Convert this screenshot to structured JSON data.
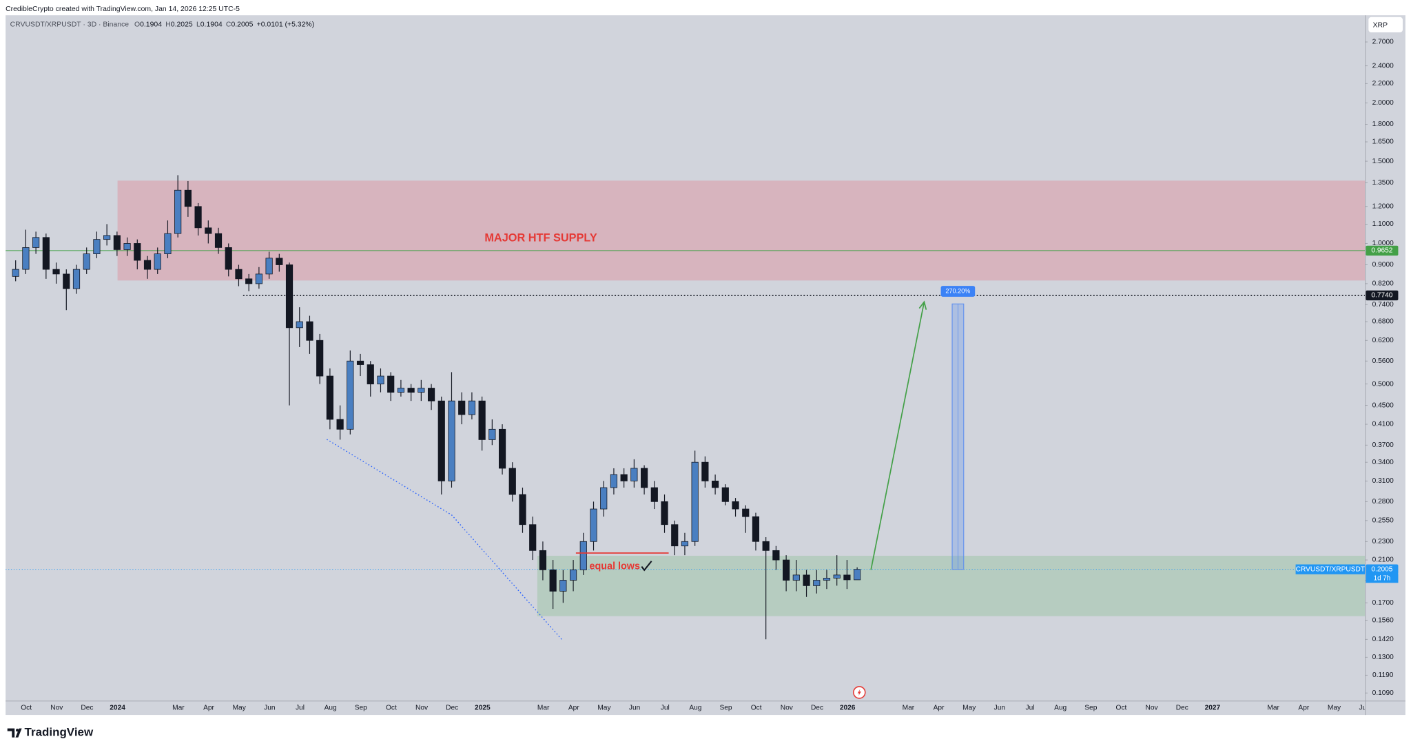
{
  "header": {
    "attribution": "CredibleCrypto created with TradingView.com, Jan 14, 2026 12:25 UTC-5"
  },
  "footer": {
    "logo_text": "TradingView"
  },
  "chart_data": {
    "type": "candlestick",
    "title": "CRVUSDT/XRPUSDT · 3D · Binance",
    "ohlc_legend": [
      {
        "key": "O",
        "value": 0.1904
      },
      {
        "key": "H",
        "value": 0.2025
      },
      {
        "key": "L",
        "value": 0.1904
      },
      {
        "key": "C",
        "value": 0.2005
      }
    ],
    "change_label": "+0.0101 (+5.32%)",
    "currency_button": "XRP",
    "series": [
      {
        "name": "CRVUSDT/XRPUSDT",
        "up_color": "#4a7fc1",
        "down_color": "#131722",
        "open": [
          0.85,
          0.88,
          0.98,
          1.03,
          0.88,
          0.86,
          0.8,
          0.88,
          0.95,
          1.02,
          1.04,
          0.97,
          1.0,
          0.92,
          0.88,
          0.95,
          1.05,
          1.3,
          1.2,
          1.08,
          1.05,
          0.98,
          0.88,
          0.84,
          0.82,
          0.86,
          0.93,
          0.9,
          0.66,
          0.68,
          0.62,
          0.52,
          0.42,
          0.4,
          0.56,
          0.55,
          0.5,
          0.52,
          0.48,
          0.49,
          0.48,
          0.49,
          0.46,
          0.31,
          0.46,
          0.43,
          0.46,
          0.38,
          0.4,
          0.33,
          0.29,
          0.25,
          0.22,
          0.2,
          0.18,
          0.19,
          0.2,
          0.23,
          0.27,
          0.3,
          0.32,
          0.31,
          0.33,
          0.3,
          0.28,
          0.25,
          0.225,
          0.23,
          0.34,
          0.31,
          0.3,
          0.28,
          0.27,
          0.26,
          0.23,
          0.22,
          0.21,
          0.19,
          0.195,
          0.185,
          0.19,
          0.192,
          0.195,
          0.1904
        ],
        "high": [
          0.92,
          1.07,
          1.06,
          1.05,
          0.91,
          0.88,
          0.9,
          0.98,
          1.06,
          1.1,
          1.06,
          1.03,
          1.02,
          0.94,
          0.98,
          1.12,
          1.4,
          1.36,
          1.22,
          1.12,
          1.08,
          1.0,
          0.9,
          0.86,
          0.89,
          0.96,
          0.95,
          0.91,
          0.73,
          0.7,
          0.64,
          0.54,
          0.45,
          0.59,
          0.58,
          0.56,
          0.54,
          0.53,
          0.51,
          0.5,
          0.51,
          0.5,
          0.47,
          0.53,
          0.48,
          0.48,
          0.47,
          0.42,
          0.41,
          0.34,
          0.3,
          0.26,
          0.23,
          0.21,
          0.2,
          0.21,
          0.24,
          0.28,
          0.31,
          0.33,
          0.33,
          0.345,
          0.335,
          0.31,
          0.29,
          0.255,
          0.24,
          0.36,
          0.35,
          0.32,
          0.305,
          0.285,
          0.275,
          0.265,
          0.235,
          0.225,
          0.215,
          0.21,
          0.2,
          0.2,
          0.2,
          0.215,
          0.21,
          0.2025
        ],
        "low": [
          0.83,
          0.86,
          0.95,
          0.84,
          0.82,
          0.72,
          0.78,
          0.86,
          0.93,
          0.99,
          0.94,
          0.94,
          0.88,
          0.84,
          0.86,
          0.93,
          1.03,
          1.14,
          1.04,
          1.0,
          0.95,
          0.85,
          0.81,
          0.79,
          0.8,
          0.84,
          0.87,
          0.45,
          0.6,
          0.58,
          0.5,
          0.4,
          0.38,
          0.39,
          0.52,
          0.47,
          0.48,
          0.46,
          0.47,
          0.46,
          0.46,
          0.44,
          0.29,
          0.3,
          0.41,
          0.42,
          0.36,
          0.37,
          0.32,
          0.28,
          0.24,
          0.21,
          0.19,
          0.165,
          0.17,
          0.18,
          0.195,
          0.22,
          0.26,
          0.29,
          0.3,
          0.3,
          0.29,
          0.27,
          0.24,
          0.215,
          0.215,
          0.225,
          0.3,
          0.29,
          0.275,
          0.26,
          0.24,
          0.22,
          0.142,
          0.2,
          0.18,
          0.18,
          0.175,
          0.178,
          0.182,
          0.185,
          0.182,
          0.1904
        ],
        "close": [
          0.88,
          0.98,
          1.03,
          0.88,
          0.86,
          0.8,
          0.88,
          0.95,
          1.02,
          1.04,
          0.97,
          1.0,
          0.92,
          0.88,
          0.95,
          1.05,
          1.3,
          1.2,
          1.08,
          1.05,
          0.98,
          0.88,
          0.84,
          0.82,
          0.86,
          0.93,
          0.9,
          0.66,
          0.68,
          0.62,
          0.52,
          0.42,
          0.4,
          0.56,
          0.55,
          0.5,
          0.52,
          0.48,
          0.49,
          0.48,
          0.49,
          0.46,
          0.31,
          0.46,
          0.43,
          0.46,
          0.38,
          0.4,
          0.33,
          0.29,
          0.25,
          0.22,
          0.2,
          0.18,
          0.19,
          0.2,
          0.23,
          0.27,
          0.3,
          0.32,
          0.31,
          0.33,
          0.3,
          0.28,
          0.25,
          0.225,
          0.23,
          0.34,
          0.31,
          0.3,
          0.28,
          0.27,
          0.26,
          0.23,
          0.22,
          0.21,
          0.19,
          0.195,
          0.185,
          0.19,
          0.192,
          0.195,
          0.1904,
          0.2005
        ]
      }
    ],
    "x_labels": [
      "Oct",
      "Nov",
      "Dec",
      "2024",
      null,
      "Mar",
      "Apr",
      "May",
      "Jun",
      "Jul",
      "Aug",
      "Sep",
      "Oct",
      "Nov",
      "Dec",
      "2025",
      null,
      "Mar",
      "Apr",
      "May",
      "Jun",
      "Jul",
      "Aug",
      "Sep",
      "Oct",
      "Nov",
      "Dec",
      "2026",
      null,
      "Mar",
      "Apr",
      "May",
      "Jun",
      "Jul",
      "Aug",
      "Sep",
      "Oct",
      "Nov",
      "Dec",
      "2027",
      null,
      "Mar",
      "Apr",
      "May",
      "Jun"
    ],
    "log_scale": true,
    "grid": false,
    "ylim": [
      0.105,
      3.08
    ],
    "yticks": [
      {
        "value": 2.7,
        "label": "2.7000"
      },
      {
        "value": 2.4,
        "label": "2.4000"
      },
      {
        "value": 2.2,
        "label": "2.2000"
      },
      {
        "value": 2.0,
        "label": "2.0000"
      },
      {
        "value": 1.8,
        "label": "1.8000"
      },
      {
        "value": 1.65,
        "label": "1.6500"
      },
      {
        "value": 1.5,
        "label": "1.5000"
      },
      {
        "value": 1.35,
        "label": "1.3500"
      },
      {
        "value": 1.2,
        "label": "1.2000"
      },
      {
        "value": 1.1,
        "label": "1.1000"
      },
      {
        "value": 1.0,
        "label": "1.0000"
      },
      {
        "value": 0.9,
        "label": "0.9000"
      },
      {
        "value": 0.82,
        "label": "0.8200"
      },
      {
        "value": 0.74,
        "label": "0.7400"
      },
      {
        "value": 0.68,
        "label": "0.6800"
      },
      {
        "value": 0.62,
        "label": "0.6200"
      },
      {
        "value": 0.56,
        "label": "0.5600"
      },
      {
        "value": 0.5,
        "label": "0.5000"
      },
      {
        "value": 0.45,
        "label": "0.4500"
      },
      {
        "value": 0.41,
        "label": "0.4100"
      },
      {
        "value": 0.37,
        "label": "0.3700"
      },
      {
        "value": 0.34,
        "label": "0.3400"
      },
      {
        "value": 0.31,
        "label": "0.3100"
      },
      {
        "value": 0.28,
        "label": "0.2800"
      },
      {
        "value": 0.255,
        "label": "0.2550"
      },
      {
        "value": 0.23,
        "label": "0.2300"
      },
      {
        "value": 0.21,
        "label": "0.2100"
      },
      {
        "value": 0.19,
        "label": "0.1900"
      },
      {
        "value": 0.17,
        "label": "0.1700"
      },
      {
        "value": 0.156,
        "label": "0.1560"
      },
      {
        "value": 0.142,
        "label": "0.1420"
      },
      {
        "value": 0.13,
        "label": "0.1300"
      },
      {
        "value": 0.119,
        "label": "0.1190"
      },
      {
        "value": 0.109,
        "label": "0.1090"
      }
    ],
    "zones": [
      {
        "label": "MAJOR HTF SUPPLY",
        "low": 0.833,
        "high": 1.363,
        "color": "#f23645",
        "label_color": "#e53935"
      },
      {
        "low": 0.1592,
        "high": 0.2144,
        "color": "#4caf50"
      }
    ],
    "price_lines": [
      {
        "value": 0.9652,
        "color": "#43a047",
        "style": "solid"
      },
      {
        "value": 0.774,
        "label": "0.7740",
        "color": "#131722",
        "style": "dotted"
      },
      {
        "value": 0.2005,
        "color": "#2196f3",
        "style": "dotted",
        "countdown": "1d 7h",
        "tag": "CRVUSDT/XRPUSDT"
      }
    ],
    "trendline": {
      "values": [
        0.3806,
        0.262,
        0.1413
      ],
      "color": "#2962ff"
    },
    "equal_lows": {
      "label": "equal lows",
      "value": 0.2173,
      "color": "#e53935"
    },
    "arrow": {
      "from": 0.2,
      "to": 0.7497,
      "color": "#43a047"
    },
    "measure": {
      "from": 0.2005,
      "to": 0.7422,
      "label": "270.20%",
      "color": "#5b8def"
    }
  }
}
